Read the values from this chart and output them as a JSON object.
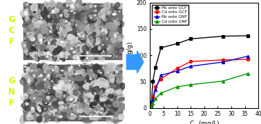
{
  "title": "",
  "xlabel": "C$_e$ (mg/L)",
  "ylabel": "q$_e$(mg/g)",
  "xlim": [
    0,
    40
  ],
  "ylim": [
    0,
    200
  ],
  "xticks": [
    0,
    5,
    10,
    15,
    20,
    25,
    30,
    35,
    40
  ],
  "yticks": [
    0,
    50,
    100,
    150,
    200
  ],
  "series": [
    {
      "label": "Pb onto GCF",
      "color": "#000000",
      "marker": "s",
      "x": [
        0.5,
        1,
        2,
        4,
        10,
        15,
        27,
        36
      ],
      "y": [
        10,
        50,
        77,
        114,
        122,
        131,
        136,
        137
      ]
    },
    {
      "label": "Cd onto GCF",
      "color": "#ff0000",
      "marker": "o",
      "x": [
        0.5,
        1,
        2,
        4,
        10,
        15,
        27,
        36
      ],
      "y": [
        5,
        20,
        40,
        55,
        75,
        88,
        91,
        92
      ]
    },
    {
      "label": "Pb onto GNF",
      "color": "#0000cc",
      "marker": "^",
      "x": [
        0.5,
        1,
        2,
        4,
        10,
        15,
        27,
        36
      ],
      "y": [
        3,
        15,
        35,
        62,
        70,
        79,
        87,
        98
      ]
    },
    {
      "label": "Cd onto GNF",
      "color": "#009900",
      "marker": "^",
      "x": [
        0.5,
        1,
        2,
        4,
        10,
        15,
        27,
        36
      ],
      "y": [
        2,
        8,
        18,
        28,
        40,
        44,
        51,
        65
      ]
    }
  ],
  "left_panel_bg": "#7ec8e3",
  "left_label_color": "#ccff00",
  "arrow_color": "#3399ff",
  "fig_bg": "#ffffff",
  "sem_top_color": "#8a9a8a",
  "sem_bottom_color": "#8a9a8a"
}
